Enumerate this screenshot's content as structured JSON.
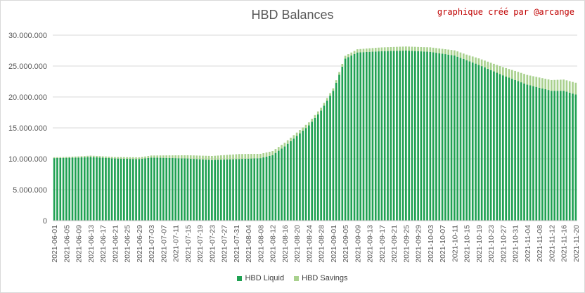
{
  "chart_data": {
    "type": "bar",
    "stacked": true,
    "title": "HBD Balances",
    "annotation": "graphique créé par @arcange",
    "xlabel": "",
    "ylabel": "",
    "ylim": [
      0,
      30000000
    ],
    "yticks": [
      "0",
      "5.000.000",
      "10.000.000",
      "15.000.000",
      "20.000.000",
      "25.000.000",
      "30.000.000"
    ],
    "grid": true,
    "legend_position": "bottom",
    "start_date": "2021-06-01",
    "end_date": "2021-11-20",
    "xtick_labels": [
      "2021-06-01",
      "2021-06-05",
      "2021-06-09",
      "2021-06-13",
      "2021-06-17",
      "2021-06-21",
      "2021-06-25",
      "2021-06-29",
      "2021-07-03",
      "2021-07-07",
      "2021-07-11",
      "2021-07-15",
      "2021-07-19",
      "2021-07-23",
      "2021-07-27",
      "2021-07-31",
      "2021-08-04",
      "2021-08-08",
      "2021-08-12",
      "2021-08-16",
      "2021-08-20",
      "2021-08-24",
      "2021-08-28",
      "2021-09-01",
      "2021-09-05",
      "2021-09-09",
      "2021-09-13",
      "2021-09-17",
      "2021-09-21",
      "2021-09-25",
      "2021-09-29",
      "2021-10-03",
      "2021-10-07",
      "2021-10-11",
      "2021-10-15",
      "2021-10-19",
      "2021-10-23",
      "2021-10-27",
      "2021-10-31",
      "2021-11-04",
      "2021-11-08",
      "2021-11-12",
      "2021-11-16",
      "2021-11-20"
    ],
    "series": [
      {
        "name": "HBD Liquid",
        "color": "#1fa152",
        "anchors": [
          [
            "2021-06-01",
            10100000
          ],
          [
            "2021-06-09",
            10200000
          ],
          [
            "2021-06-13",
            10300000
          ],
          [
            "2021-06-21",
            10050000
          ],
          [
            "2021-06-29",
            9950000
          ],
          [
            "2021-07-03",
            10200000
          ],
          [
            "2021-07-15",
            10050000
          ],
          [
            "2021-07-23",
            9800000
          ],
          [
            "2021-07-31",
            9950000
          ],
          [
            "2021-08-08",
            10100000
          ],
          [
            "2021-08-12",
            10600000
          ],
          [
            "2021-08-16",
            12000000
          ],
          [
            "2021-08-20",
            13700000
          ],
          [
            "2021-08-24",
            15400000
          ],
          [
            "2021-08-28",
            17800000
          ],
          [
            "2021-09-01",
            21000000
          ],
          [
            "2021-09-05",
            26200000
          ],
          [
            "2021-09-09",
            27200000
          ],
          [
            "2021-09-17",
            27400000
          ],
          [
            "2021-09-25",
            27500000
          ],
          [
            "2021-10-03",
            27300000
          ],
          [
            "2021-10-11",
            26700000
          ],
          [
            "2021-10-19",
            25200000
          ],
          [
            "2021-10-27",
            23500000
          ],
          [
            "2021-11-04",
            22000000
          ],
          [
            "2021-11-12",
            21000000
          ],
          [
            "2021-11-16",
            21000000
          ],
          [
            "2021-11-20",
            20400000
          ]
        ]
      },
      {
        "name": "HBD Savings",
        "color": "#a9d18e",
        "anchors": [
          [
            "2021-06-01",
            150000
          ],
          [
            "2021-07-01",
            300000
          ],
          [
            "2021-08-01",
            800000
          ],
          [
            "2021-08-15",
            600000
          ],
          [
            "2021-09-01",
            400000
          ],
          [
            "2021-09-15",
            600000
          ],
          [
            "2021-10-01",
            700000
          ],
          [
            "2021-10-15",
            900000
          ],
          [
            "2021-11-01",
            1500000
          ],
          [
            "2021-11-20",
            1900000
          ]
        ]
      }
    ]
  }
}
